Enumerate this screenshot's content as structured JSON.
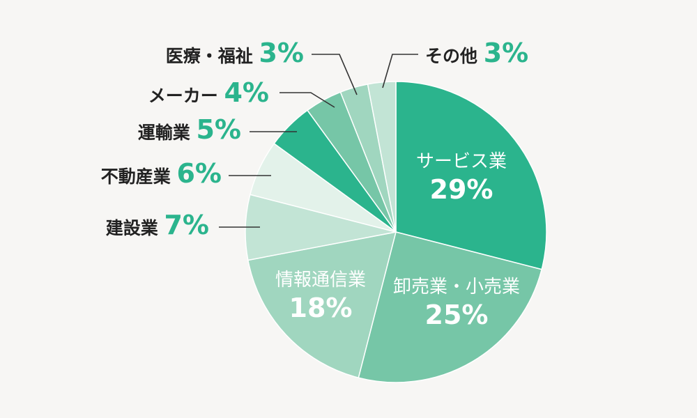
{
  "chart_data": {
    "type": "pie",
    "slices": [
      {
        "label": "サービス業",
        "pct_label": "29%",
        "value": 29,
        "color": "#2bb48d",
        "label_position": "inside"
      },
      {
        "label": "卸売業・小売業",
        "pct_label": "25%",
        "value": 25,
        "color": "#76c6a7",
        "label_position": "inside"
      },
      {
        "label": "情報通信業",
        "pct_label": "18%",
        "value": 18,
        "color": "#a0d6bf",
        "label_position": "inside"
      },
      {
        "label": "建設業",
        "pct_label": "7%",
        "value": 7,
        "color": "#c2e4d5",
        "label_position": "outside"
      },
      {
        "label": "不動産業",
        "pct_label": "6%",
        "value": 6,
        "color": "#e3f2ea",
        "label_position": "outside"
      },
      {
        "label": "運輸業",
        "pct_label": "5%",
        "value": 5,
        "color": "#2bb48d",
        "label_position": "outside"
      },
      {
        "label": "メーカー",
        "pct_label": "4%",
        "value": 4,
        "color": "#76c6a7",
        "label_position": "outside"
      },
      {
        "label": "医療・福祉",
        "pct_label": "3%",
        "value": 3,
        "color": "#a0d6bf",
        "label_position": "outside"
      },
      {
        "label": "その他",
        "pct_label": "3%",
        "value": 3,
        "color": "#c2e4d5",
        "label_position": "outside"
      }
    ],
    "start_angle_deg": 0,
    "direction": "clockwise",
    "percent_color": "#2bb48d",
    "slice_border_color": "#ffffff",
    "legend": "none"
  }
}
